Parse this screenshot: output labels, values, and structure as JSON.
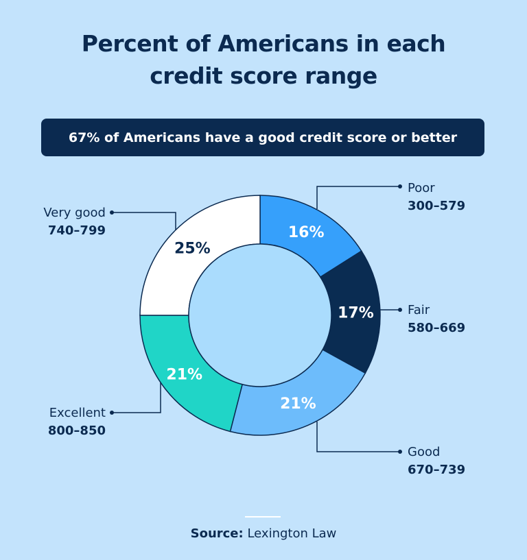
{
  "title_lines": [
    "Percent of Americans in each",
    "credit score range"
  ],
  "banner": "67% of Americans have a good credit score or better",
  "chart_data": {
    "type": "pie",
    "donut": true,
    "title": "Percent of Americans in each credit score range",
    "start": "top",
    "direction": "clockwise",
    "slices": [
      {
        "name": "Poor",
        "range": "300–579",
        "value": 16,
        "label": "16%",
        "color": "#36a0fb",
        "text_color": "#ffffff"
      },
      {
        "name": "Fair",
        "range": "580–669",
        "value": 17,
        "label": "17%",
        "color": "#0a2c52",
        "text_color": "#ffffff"
      },
      {
        "name": "Good",
        "range": "670–739",
        "value": 21,
        "label": "21%",
        "color": "#6dbcfb",
        "text_color": "#ffffff"
      },
      {
        "name": "Excellent",
        "range": "800–850",
        "value": 21,
        "label": "21%",
        "color": "#20d5c7",
        "text_color": "#ffffff"
      },
      {
        "name": "Very good",
        "range": "740–799",
        "value": 25,
        "label": "25%",
        "color": "#ffffff",
        "text_color": "#0b2a50"
      }
    ],
    "center_color": "#aadcfd"
  },
  "source": {
    "label": "Source:",
    "value": "Lexington Law"
  },
  "colors": {
    "background": "#c3e3fc",
    "navy": "#0b2a50"
  }
}
